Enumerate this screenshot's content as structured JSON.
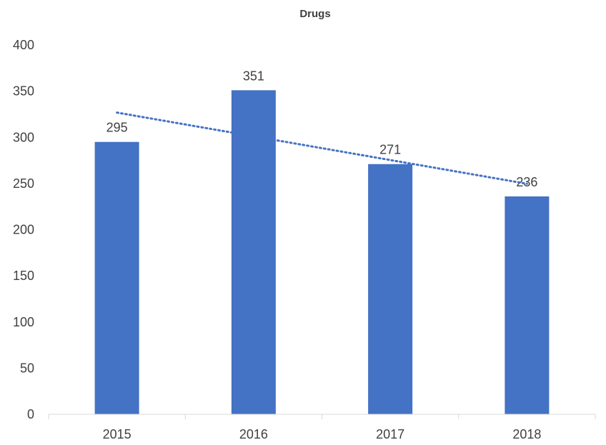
{
  "chart_data": {
    "type": "bar",
    "title": "Drugs",
    "categories": [
      "2015",
      "2016",
      "2017",
      "2018"
    ],
    "values": [
      295,
      351,
      271,
      236
    ],
    "data_labels": [
      "295",
      "351",
      "271",
      "236"
    ],
    "ylim": [
      0,
      400
    ],
    "yticks": [
      "0",
      "50",
      "100",
      "150",
      "200",
      "250",
      "300",
      "350",
      "400"
    ],
    "grid": false,
    "legend": "none",
    "trendline": {
      "type": "linear",
      "style": "dotted"
    },
    "bar_color": "#4472C4",
    "trendline_color": "#4472C4"
  }
}
